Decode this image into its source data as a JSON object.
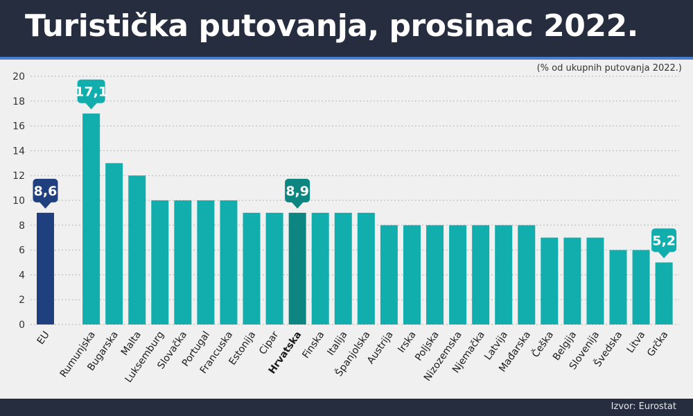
{
  "header": {
    "title": "Turistička putovanja, prosinac 2022."
  },
  "footer": {
    "source": "Izvor: Eurostat"
  },
  "colors": {
    "header_bg": "#252d3f",
    "accent_line": "#4a7fd0",
    "bar": "#12adad",
    "bar_highlight": "#0d8580",
    "bar_eu": "#1f3f7e",
    "background": "#f0f0f0"
  },
  "chart_data": {
    "type": "bar",
    "title": "Turistička putovanja, prosinac 2022.",
    "subtitle": "(% od ukupnih putovanja 2022.)",
    "xlabel": "",
    "ylabel": "",
    "ylim": [
      0,
      20
    ],
    "yticks": [
      0,
      2,
      4,
      6,
      8,
      10,
      12,
      14,
      16,
      18,
      20
    ],
    "grid": "horizontal-dashed",
    "categories": [
      "EU",
      "Rumunjska",
      "Bugarska",
      "Malta",
      "Luksemburg",
      "Slovačka",
      "Portugal",
      "Francuska",
      "Estonija",
      "Cipar",
      "Hrvatska",
      "Finska",
      "Italija",
      "Španjolska",
      "Austrija",
      "Irska",
      "Poljska",
      "Nizozemska",
      "Njemačka",
      "Latvija",
      "Mađarska",
      "Češka",
      "Belgija",
      "Slovenija",
      "Švedska",
      "Litva",
      "Grčka"
    ],
    "values": [
      9,
      17,
      13,
      12,
      10,
      10,
      10,
      10,
      9,
      9,
      9,
      9,
      9,
      9,
      8,
      8,
      8,
      8,
      8,
      8,
      8,
      7,
      7,
      7,
      6,
      6,
      5
    ],
    "highlight_bold": "Hrvatska",
    "annotations": [
      {
        "category": "EU",
        "label": "8,6",
        "color": "#1f3f7e"
      },
      {
        "category": "Rumunjska",
        "label": "17,1",
        "color": "#12adad"
      },
      {
        "category": "Hrvatska",
        "label": "8,9",
        "color": "#0d8580"
      },
      {
        "category": "Grčka",
        "label": "5,2",
        "color": "#12adad"
      }
    ]
  }
}
